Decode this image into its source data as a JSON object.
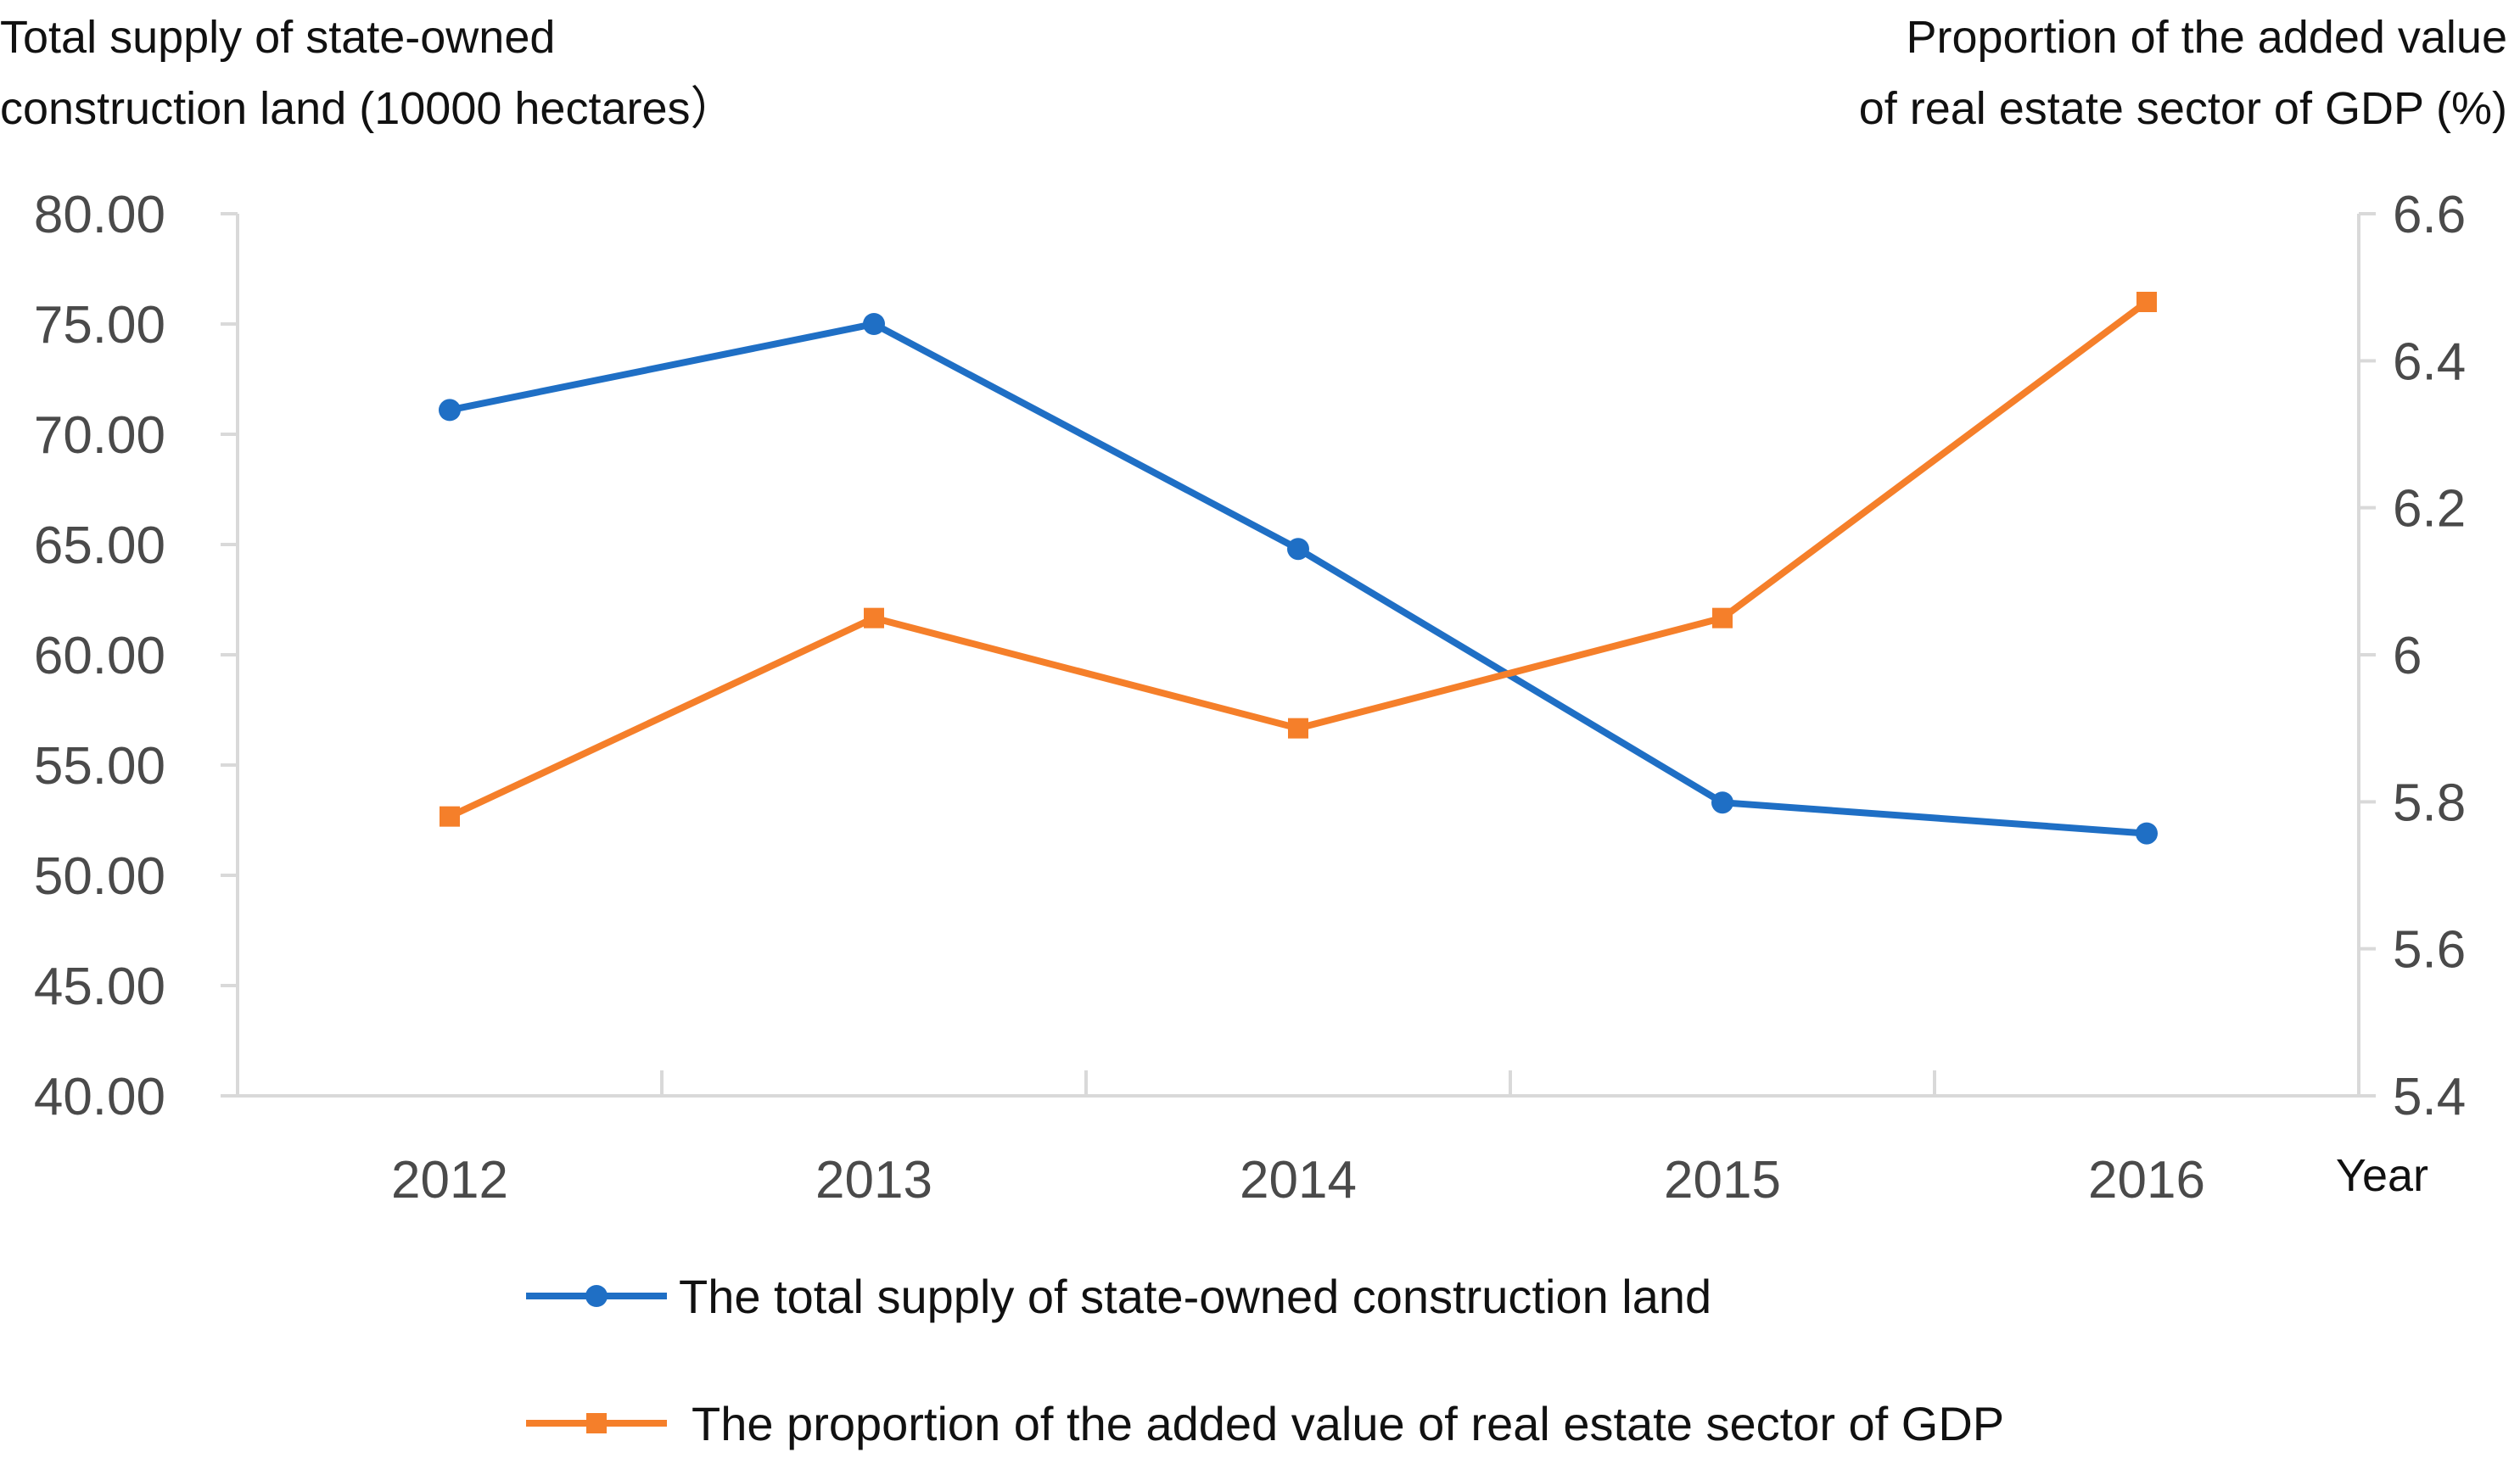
{
  "chart_data": {
    "type": "line",
    "categories": [
      "2012",
      "2013",
      "2014",
      "2015",
      "2016"
    ],
    "xlabel": "Year",
    "y_left": {
      "label_lines": [
        "Total supply of state-owned",
        "construction land (10000 hectares）"
      ],
      "range": [
        40,
        80
      ],
      "ticks": [
        "40.00",
        "45.00",
        "50.00",
        "55.00",
        "60.00",
        "65.00",
        "70.00",
        "75.00",
        "80.00"
      ]
    },
    "y_right": {
      "label_lines": [
        "Proportion of the added value",
        "of real estate sector of GDP (%)"
      ],
      "range": [
        5.4,
        6.6
      ],
      "ticks": [
        "5.4",
        "5.6",
        "5.8",
        "6",
        "6.2",
        "6.4",
        "6.6"
      ]
    },
    "series": [
      {
        "name": "The total supply of state-owned construction land",
        "axis": "left",
        "color": "#1f6fc5",
        "marker": "circle",
        "values": [
          71.1,
          75.0,
          64.8,
          53.3,
          51.9
        ]
      },
      {
        "name": "The proportion of the added value of real estate sector of GDP",
        "axis": "right",
        "color": "#f57f2a",
        "marker": "square",
        "values": [
          5.78,
          6.05,
          5.9,
          6.05,
          6.48
        ]
      }
    ],
    "legend_position": "bottom",
    "grid": false
  }
}
